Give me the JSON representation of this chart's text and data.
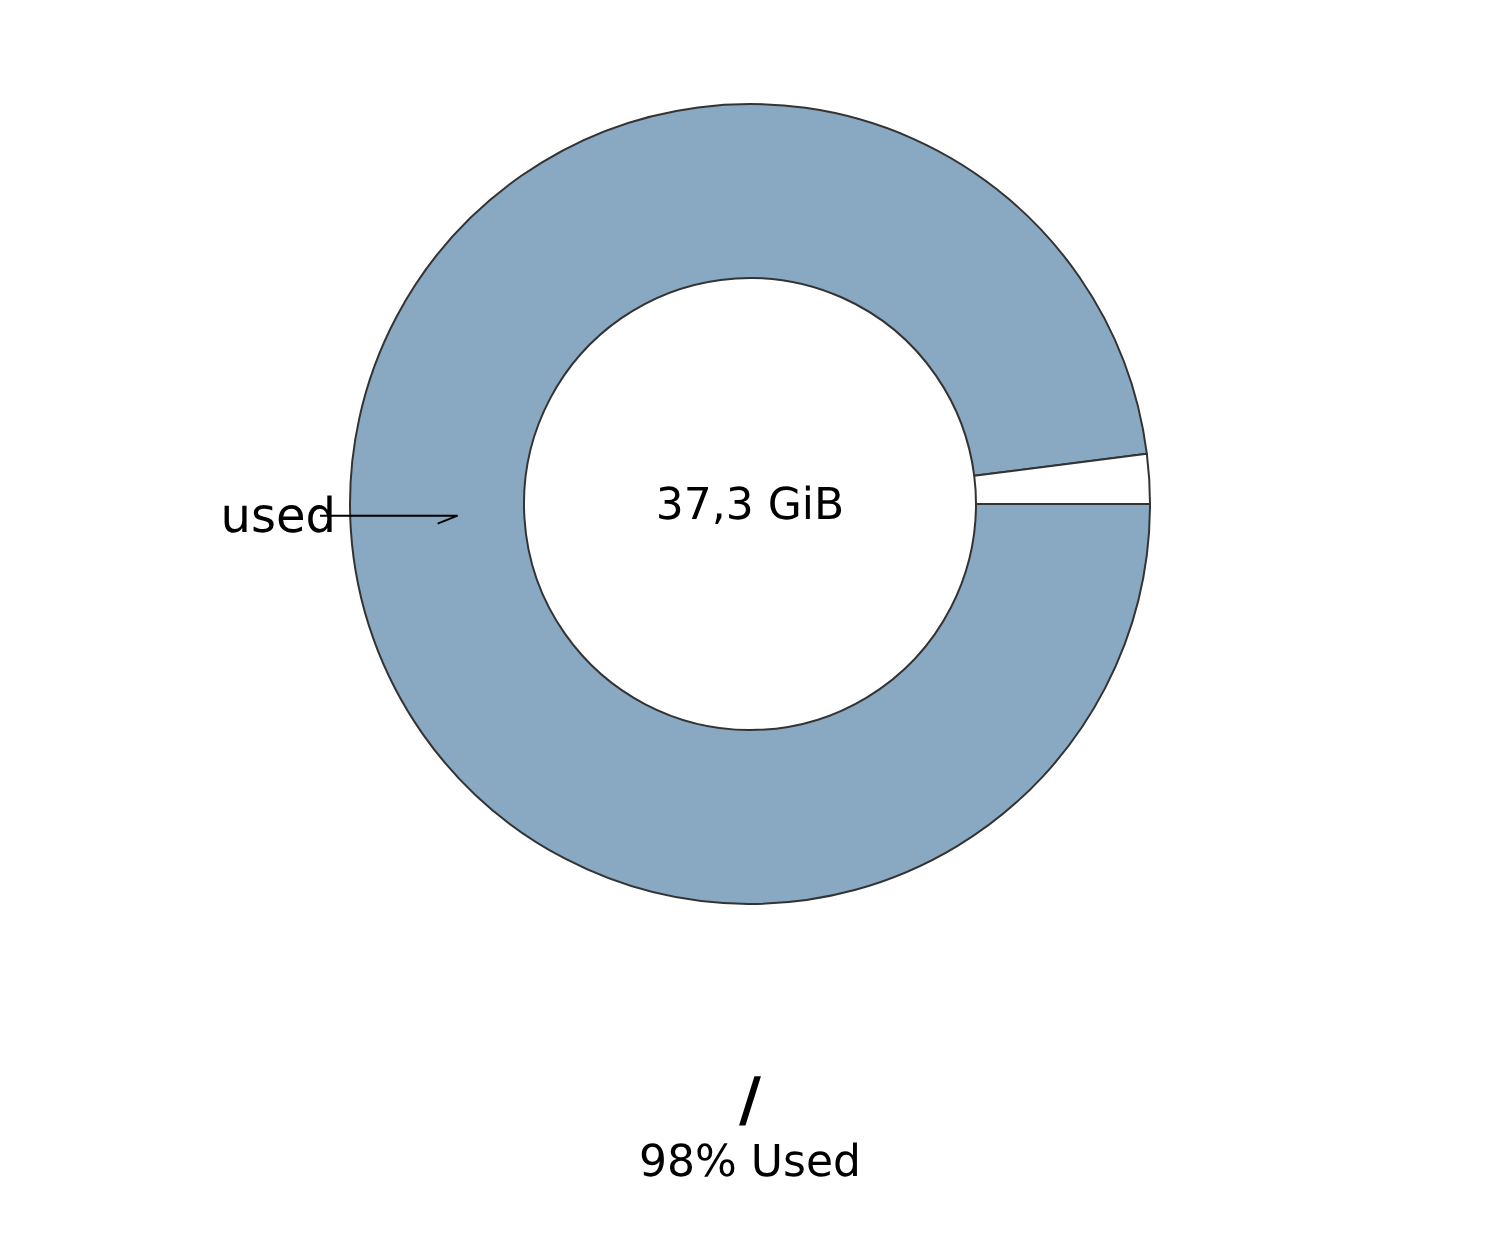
{
  "chart_data": {
    "type": "donut",
    "title": "/",
    "subtitle": "98% Used",
    "annotations": [
      "37,3 GiB"
    ],
    "categories": [
      "used",
      null
    ],
    "values": [
      98,
      2
    ],
    "colors": [
      "#88a9c1",
      "#ffffff"
    ]
  }
}
